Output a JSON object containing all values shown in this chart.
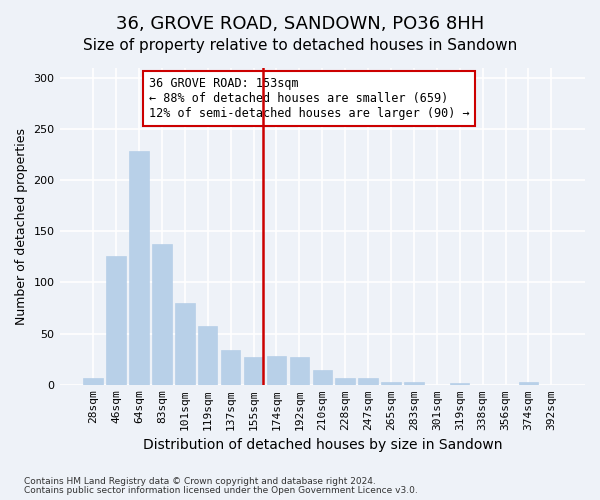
{
  "title": "36, GROVE ROAD, SANDOWN, PO36 8HH",
  "subtitle": "Size of property relative to detached houses in Sandown",
  "xlabel": "Distribution of detached houses by size in Sandown",
  "ylabel": "Number of detached properties",
  "categories": [
    "28sqm",
    "46sqm",
    "64sqm",
    "83sqm",
    "101sqm",
    "119sqm",
    "137sqm",
    "155sqm",
    "174sqm",
    "192sqm",
    "210sqm",
    "228sqm",
    "247sqm",
    "265sqm",
    "283sqm",
    "301sqm",
    "319sqm",
    "338sqm",
    "356sqm",
    "374sqm",
    "392sqm"
  ],
  "values": [
    7,
    126,
    228,
    138,
    80,
    57,
    34,
    27,
    28,
    27,
    14,
    7,
    7,
    3,
    3,
    0,
    2,
    0,
    0,
    3,
    0
  ],
  "bar_color": "#b8d0e8",
  "bar_edgecolor": "#b8d0e8",
  "vline_bar_index": 7,
  "vline_color": "#cc0000",
  "annotation_text": "36 GROVE ROAD: 153sqm\n← 88% of detached houses are smaller (659)\n12% of semi-detached houses are larger (90) →",
  "annotation_box_facecolor": "#ffffff",
  "annotation_box_edgecolor": "#cc0000",
  "footnote1": "Contains HM Land Registry data © Crown copyright and database right 2024.",
  "footnote2": "Contains public sector information licensed under the Open Government Licence v3.0.",
  "background_color": "#eef2f8",
  "grid_color": "#ffffff",
  "ylim": [
    0,
    310
  ],
  "yticks": [
    0,
    50,
    100,
    150,
    200,
    250,
    300
  ],
  "title_fontsize": 13,
  "subtitle_fontsize": 11,
  "xlabel_fontsize": 10,
  "ylabel_fontsize": 9,
  "tick_fontsize": 8,
  "annotation_fontsize": 8.5
}
